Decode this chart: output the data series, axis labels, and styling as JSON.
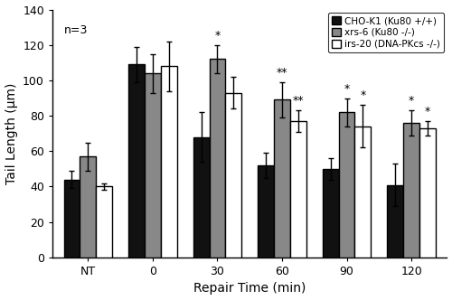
{
  "categories": [
    "NT",
    "0",
    "30",
    "60",
    "90",
    "120"
  ],
  "series": {
    "CHO-K1": {
      "values": [
        44,
        109,
        68,
        52,
        50,
        41
      ],
      "errors": [
        5,
        10,
        14,
        7,
        6,
        12
      ],
      "color": "#111111",
      "label": "CHO-K1 (Ku80 +/+)"
    },
    "xrs6": {
      "values": [
        57,
        104,
        112,
        89,
        82,
        76
      ],
      "errors": [
        8,
        11,
        8,
        10,
        8,
        7
      ],
      "color": "#888888",
      "label": "xrs-6 (Ku80 -/-)"
    },
    "irs20": {
      "values": [
        40,
        108,
        93,
        77,
        74,
        73
      ],
      "errors": [
        2,
        14,
        9,
        6,
        12,
        4
      ],
      "color": "#ffffff",
      "label": "irs-20 (DNA-PKcs -/-)"
    }
  },
  "xlabel": "Repair Time (min)",
  "ylabel": "Tail Length (μm)",
  "ylim": [
    0,
    140
  ],
  "yticks": [
    0,
    20,
    40,
    60,
    80,
    100,
    120,
    140
  ],
  "annotation_label": "n=3",
  "bar_width": 0.25,
  "edgecolor": "#000000",
  "background_color": "#ffffff",
  "sig_list": [
    [
      2,
      1,
      "*",
      122
    ],
    [
      3,
      1,
      "**",
      101
    ],
    [
      3,
      2,
      "**",
      85
    ],
    [
      4,
      1,
      "*",
      92
    ],
    [
      4,
      2,
      "*",
      88
    ],
    [
      5,
      1,
      "*",
      85
    ],
    [
      5,
      2,
      "*",
      79
    ]
  ]
}
